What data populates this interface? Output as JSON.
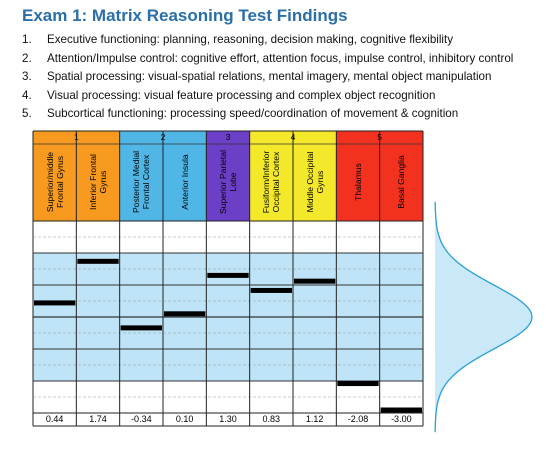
{
  "title": "Exam 1: Matrix Reasoning Test Findings",
  "findings": [
    {
      "num": "1.",
      "text": "Executive functioning: planning, reasoning, decision making, cognitive flexibility"
    },
    {
      "num": "2.",
      "text": "Attention/Impulse control: cognitive effort, attention focus, impulse control, inhibitory control"
    },
    {
      "num": "3.",
      "text": "Spatial processing: visual-spatial relations, mental imagery, mental object manipulation"
    },
    {
      "num": "4.",
      "text": "Visual processing: visual feature processing and complex object recognition"
    },
    {
      "num": "5.",
      "text": "Subcortical functioning: processing speed/coordination of movement & cognition"
    }
  ],
  "chart_data": {
    "type": "table",
    "groups": [
      {
        "label": "1",
        "color": "#f79a1f",
        "span": 2
      },
      {
        "label": "2",
        "color": "#4fb6e6",
        "span": 2
      },
      {
        "label": "3",
        "color": "#6b3fc6",
        "span": 1
      },
      {
        "label": "4",
        "color": "#f3e92a",
        "span": 2
      },
      {
        "label": "5",
        "color": "#f2321f",
        "span": 2
      }
    ],
    "regions": [
      {
        "name": "Superior/middle Frontal Gyrus",
        "score": 0.44,
        "label": "0.44"
      },
      {
        "name": "Inferior Frontal Gyrus",
        "score": 1.74,
        "label": "1.74"
      },
      {
        "name": "Posterior Medial Frontal Cortex",
        "score": -0.34,
        "label": "-0.34"
      },
      {
        "name": "Anterior Insula",
        "score": 0.1,
        "label": "0.10"
      },
      {
        "name": "Superior Parietal Lobe",
        "score": 1.3,
        "label": "1.30"
      },
      {
        "name": "Fusiform/Inferior Occipital Cortex",
        "score": 0.83,
        "label": "0.83"
      },
      {
        "name": "Middle Occipital Gyrus",
        "score": 1.12,
        "label": "1.12"
      },
      {
        "name": "Thalamus",
        "score": -2.08,
        "label": "-2.08"
      },
      {
        "name": "Basal Ganglia",
        "score": -3.0,
        "label": "-3.00"
      }
    ],
    "scale_range": [
      -3,
      3
    ],
    "shaded_band": [
      -2,
      2
    ],
    "colors": {
      "band": "#bfe4f7",
      "band_edge": "#8ccbea",
      "line": "#2a9fd6",
      "bar": "#000000"
    }
  }
}
